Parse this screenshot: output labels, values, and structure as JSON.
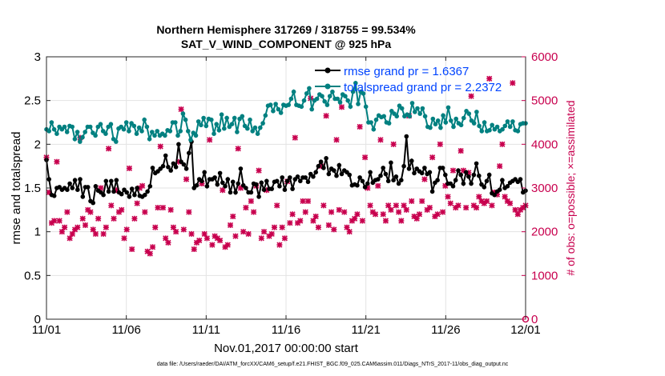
{
  "chart_data": {
    "type": "line",
    "title": "Northern Hemisphere 317269 / 318755 = 99.534%",
    "subtitle": "SAT_V_WIND_COMPONENT @ 925 hPa",
    "xlabel": "Nov.01,2017 00:00:00 start",
    "ylabel": "rmse and totalspread",
    "ylabel_right": "# of obs: o=possible; ×=assimilated",
    "x_ticks": [
      "11/01",
      "11/06",
      "11/11",
      "11/16",
      "11/21",
      "11/26",
      "12/01"
    ],
    "y_ticks": [
      "0",
      "0.5",
      "1",
      "1.5",
      "2",
      "2.5",
      "3"
    ],
    "y_right_ticks": [
      "0",
      "1000",
      "2000",
      "3000",
      "4000",
      "5000",
      "6000"
    ],
    "xlim": [
      0,
      30
    ],
    "ylim": [
      0,
      3
    ],
    "ylim_right": [
      0,
      6000
    ],
    "grid": true,
    "legend_position": "top-right",
    "series": [
      {
        "name": "rmse grand pr = 1.6367",
        "color": "#000000",
        "axis": "left",
        "values": [
          1.82,
          1.6,
          1.42,
          1.41,
          1.5,
          1.51,
          1.48,
          1.5,
          1.48,
          1.55,
          1.5,
          1.59,
          1.48,
          1.6,
          1.4,
          1.51,
          1.51,
          1.35,
          1.33,
          1.52,
          1.47,
          1.45,
          1.42,
          1.58,
          1.46,
          1.58,
          1.46,
          1.59,
          1.45,
          1.43,
          1.48,
          1.45,
          1.4,
          1.49,
          1.42,
          1.5,
          1.41,
          1.4,
          1.42,
          1.46,
          1.52,
          1.73,
          1.67,
          1.69,
          1.72,
          1.75,
          1.87,
          1.74,
          1.7,
          1.78,
          1.74,
          2.0,
          1.8,
          1.77,
          1.72,
          1.9,
          2.03,
          1.5,
          1.53,
          1.6,
          1.58,
          1.68,
          1.52,
          1.6,
          1.6,
          1.62,
          1.54,
          1.67,
          1.56,
          1.52,
          1.6,
          1.45,
          1.57,
          1.45,
          1.55,
          1.72,
          1.53,
          1.5,
          1.45,
          1.45,
          1.55,
          1.54,
          1.4,
          1.56,
          1.48,
          1.58,
          1.49,
          1.49,
          1.57,
          1.58,
          1.52,
          1.62,
          1.48,
          1.58,
          1.62,
          1.49,
          1.6,
          1.63,
          1.58,
          1.62,
          1.62,
          1.57,
          1.66,
          1.63,
          1.68,
          1.75,
          1.8,
          1.73,
          1.84,
          1.66,
          1.72,
          1.7,
          1.64,
          1.76,
          1.66,
          1.7,
          1.68,
          1.65,
          1.53,
          1.54,
          1.53,
          1.62,
          1.58,
          1.51,
          1.55,
          1.68,
          1.56,
          1.59,
          1.6,
          1.64,
          1.73,
          1.66,
          1.58,
          1.79,
          1.59,
          1.63,
          1.55,
          1.59,
          1.75,
          2.09,
          1.72,
          1.81,
          1.67,
          1.72,
          1.69,
          1.67,
          1.73,
          1.66,
          1.68,
          1.46,
          1.56,
          1.59,
          1.73,
          1.73,
          1.65,
          1.55,
          1.55,
          1.52,
          1.59,
          1.7,
          1.65,
          1.55,
          1.68,
          1.63,
          1.55,
          1.65,
          1.78,
          1.64,
          1.54,
          1.51,
          1.58,
          1.65,
          1.44,
          1.42,
          1.46,
          1.48,
          1.59,
          1.5,
          1.52,
          1.56,
          1.58,
          1.6,
          1.57,
          1.6,
          1.45,
          1.47
        ]
      },
      {
        "name": "totalspread grand pr = 2.2372",
        "color": "#008080",
        "axis": "left",
        "values": [
          2.17,
          2.15,
          2.25,
          2.17,
          2.12,
          2.2,
          2.17,
          2.2,
          2.14,
          2.21,
          2.2,
          2.06,
          2.14,
          2.03,
          2.08,
          2.14,
          2.2,
          2.2,
          2.13,
          2.1,
          2.2,
          2.23,
          2.15,
          2.12,
          2.2,
          2.23,
          2.06,
          2.03,
          2.18,
          2.2,
          2.17,
          2.25,
          2.15,
          2.24,
          2.21,
          2.12,
          2.19,
          2.15,
          2.28,
          2.2,
          2.06,
          2.14,
          2.1,
          2.15,
          2.1,
          2.12,
          2.1,
          2.16,
          2.15,
          2.25,
          2.25,
          2.1,
          2.15,
          2.35,
          2.28,
          2.15,
          2.05,
          2.13,
          2.1,
          2.26,
          2.22,
          2.3,
          2.21,
          2.29,
          2.28,
          2.12,
          2.23,
          2.16,
          2.34,
          2.18,
          2.3,
          2.2,
          2.23,
          2.3,
          2.14,
          2.29,
          2.32,
          2.21,
          2.18,
          2.28,
          2.15,
          2.19,
          2.12,
          2.19,
          2.24,
          2.33,
          2.44,
          2.45,
          2.38,
          2.46,
          2.4,
          2.36,
          2.45,
          2.44,
          2.45,
          2.52,
          2.6,
          2.45,
          2.44,
          2.43,
          2.5,
          2.58,
          2.64,
          2.4,
          2.5,
          2.52,
          2.57,
          2.55,
          2.49,
          2.45,
          2.55,
          2.6,
          2.52,
          2.52,
          2.48,
          2.57,
          2.55,
          2.5,
          2.43,
          2.6,
          2.7,
          2.46,
          2.6,
          2.58,
          2.43,
          2.25,
          2.25,
          2.17,
          2.28,
          2.33,
          2.31,
          2.32,
          2.25,
          2.24,
          2.38,
          2.35,
          2.32,
          2.44,
          2.41,
          2.32,
          2.34,
          2.32,
          2.47,
          2.37,
          2.41,
          2.35,
          2.41,
          2.32,
          2.2,
          2.19,
          2.29,
          2.23,
          2.27,
          2.19,
          2.33,
          2.25,
          2.42,
          2.27,
          2.2,
          2.29,
          2.24,
          2.22,
          2.3,
          2.38,
          2.35,
          2.27,
          2.24,
          2.37,
          2.21,
          2.15,
          2.25,
          2.15,
          2.16,
          2.22,
          2.17,
          2.2,
          2.15,
          2.17,
          2.21,
          2.26,
          2.2,
          2.26,
          2.16,
          2.15,
          2.23,
          2.24,
          2.24
        ]
      },
      {
        "name": "# obs assimilated",
        "color": "#c8004e",
        "axis": "right",
        "values": [
          3700,
          2900,
          2200,
          2250,
          3600,
          2250,
          2000,
          2100,
          2450,
          1850,
          1950,
          2050,
          2100,
          4150,
          2300,
          2150,
          2500,
          2450,
          2050,
          1950,
          2300,
          3000,
          1950,
          2100,
          3900,
          2600,
          2300,
          2950,
          2450,
          2500,
          1850,
          2050,
          3450,
          1600,
          2300,
          2650,
          3000,
          3050,
          2450,
          1550,
          1500,
          1650,
          2100,
          2550,
          3950,
          2550,
          1850,
          1750,
          2500,
          2100,
          2000,
          3600,
          4800,
          2050,
          3200,
          2450,
          1950,
          1600,
          1750,
          1800,
          3100,
          1950,
          1850,
          4100,
          1700,
          1900,
          1850,
          1800,
          2950,
          1650,
          1700,
          2150,
          2350,
          1900,
          3900,
          3000,
          2000,
          2550,
          1950,
          2700,
          2450,
          3050,
          3400,
          1850,
          2000,
          2950,
          1900,
          1950,
          2100,
          2600,
          1700,
          2100,
          1850,
          3150,
          2200,
          2400,
          4150,
          2200,
          2250,
          2700,
          2450,
          2700,
          5050,
          2250,
          2350,
          2100,
          3500,
          2600,
          4650,
          2150,
          2450,
          2050,
          4100,
          2500,
          4850,
          2450,
          2100,
          2000,
          2250,
          2300,
          2400,
          4400,
          2250,
          3700,
          3000,
          2600,
          2450,
          2400,
          3050,
          4100,
          2400,
          2250,
          2600,
          2500,
          4000,
          2600,
          2450,
          2250,
          2600,
          2500,
          4650,
          2700,
          2350,
          2300,
          2400,
          2700,
          3200,
          2500,
          2550,
          3700,
          2350,
          2400,
          4000,
          2450,
          3050,
          2800,
          2650,
          3400,
          2550,
          2600,
          3850,
          3400,
          2550,
          3350,
          5100,
          2600,
          2550,
          2800,
          2700,
          2650,
          2700,
          5500,
          2600,
          2900,
          2850,
          3500,
          4000,
          2800,
          2700,
          2650,
          5400,
          2500,
          2400,
          2500,
          2550,
          2600
        ]
      },
      {
        "name": "# obs possible",
        "color": "#c8004e",
        "axis": "right",
        "values": []
      }
    ]
  },
  "footer": "data file: /Users/raeder/DAI/ATM_forcXX/CAM6_setup/f.e21.FHIST_BGC.f09_025.CAM6assim.011/Diags_NTrS_2017-11/obs_diag_output.nc"
}
